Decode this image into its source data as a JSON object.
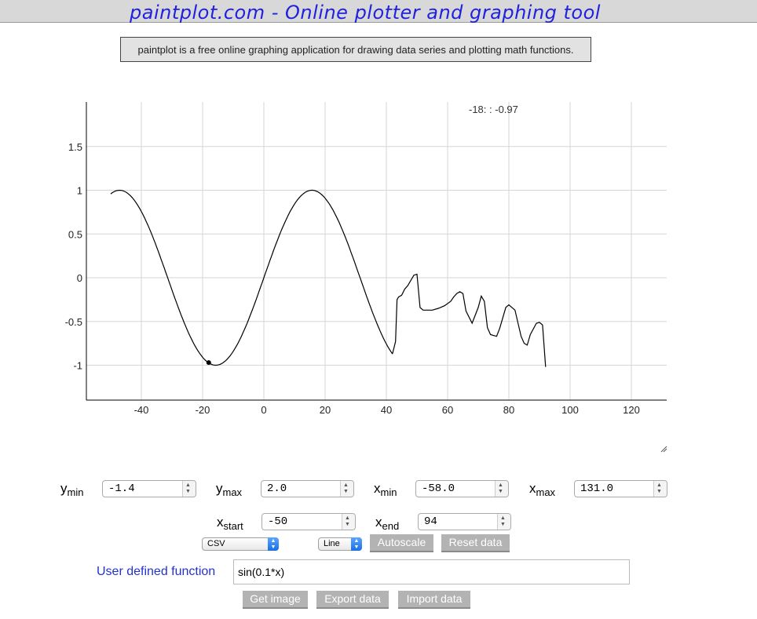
{
  "header": {
    "title": "paintplot.com - Online plotter and graphing tool",
    "description": "paintplot is a free online graphing application for drawing data series and plotting math functions."
  },
  "chart_data": {
    "type": "line",
    "readout": "-18: : -0.97",
    "cursor_point": {
      "x": -18,
      "y": -0.97
    },
    "x_ticks": [
      -40,
      -20,
      0,
      20,
      40,
      60,
      80,
      100,
      120
    ],
    "y_ticks": [
      1.5,
      1,
      0.5,
      0,
      -0.5,
      -1
    ],
    "xlim": [
      -58.0,
      131.0
    ],
    "ylim": [
      -1.4,
      2.0
    ],
    "grid": true,
    "function_segment": {
      "expr": "sin(0.1*x)",
      "x_from": -50,
      "x_to": 42
    },
    "series": [
      {
        "points": [
          [
            42,
            -0.87
          ],
          [
            43,
            -0.73
          ],
          [
            43.5,
            -0.25
          ],
          [
            44,
            -0.22
          ],
          [
            45,
            -0.2
          ],
          [
            46,
            -0.13
          ],
          [
            47,
            -0.09
          ],
          [
            48,
            -0.03
          ],
          [
            49,
            0.03
          ],
          [
            50,
            0.04
          ],
          [
            51,
            -0.34
          ],
          [
            52,
            -0.37
          ],
          [
            55,
            -0.37
          ],
          [
            57,
            -0.35
          ],
          [
            59,
            -0.32
          ],
          [
            61,
            -0.27
          ],
          [
            62,
            -0.22
          ],
          [
            63,
            -0.18
          ],
          [
            64,
            -0.16
          ],
          [
            65,
            -0.18
          ],
          [
            66,
            -0.38
          ],
          [
            68,
            -0.52
          ],
          [
            70,
            -0.34
          ],
          [
            71,
            -0.21
          ],
          [
            72,
            -0.27
          ],
          [
            73,
            -0.57
          ],
          [
            74,
            -0.65
          ],
          [
            76,
            -0.67
          ],
          [
            77,
            -0.58
          ],
          [
            79,
            -0.34
          ],
          [
            80,
            -0.31
          ],
          [
            82,
            -0.37
          ],
          [
            84,
            -0.67
          ],
          [
            85,
            -0.75
          ],
          [
            86,
            -0.77
          ],
          [
            87,
            -0.65
          ],
          [
            89,
            -0.52
          ],
          [
            90,
            -0.51
          ],
          [
            91,
            -0.54
          ],
          [
            92,
            -1.02
          ]
        ]
      }
    ]
  },
  "controls": {
    "ymin_label": "y",
    "ymin_sub": "min",
    "ymin_value": "-1.4",
    "ymax_label": "y",
    "ymax_sub": "max",
    "ymax_value": "2.0",
    "xmin_label": "x",
    "xmin_sub": "min",
    "xmin_value": "-58.0",
    "xmax_label": "x",
    "xmax_sub": "max",
    "xmax_value": "131.0",
    "xstart_label": "x",
    "xstart_sub": "start",
    "xstart_value": "-50",
    "xend_label": "x",
    "xend_sub": "end",
    "xend_value": "94",
    "format_select": "CSV",
    "style_select": "Line",
    "autoscale_label": "Autoscale",
    "reset_label": "Reset data",
    "udf_label": "User defined function",
    "udf_value": "sin(0.1*x)",
    "get_image_label": "Get image",
    "export_label": "Export data",
    "import_label": "Import data"
  },
  "icons": {
    "resize": "resize-grip-icon",
    "spinner": "spinner-arrows-icon",
    "select": "select-chevron-icon"
  }
}
